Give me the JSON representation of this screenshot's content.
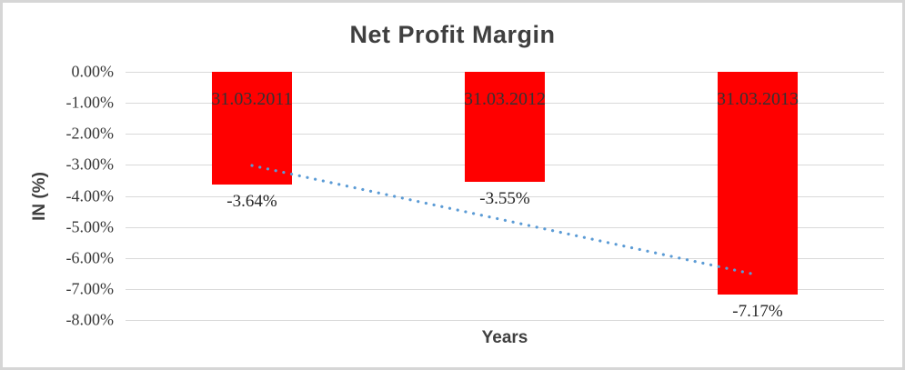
{
  "chart_data": {
    "type": "bar",
    "title": "Net Profit Margin",
    "xlabel": "Years",
    "ylabel": "IN (%)",
    "categories": [
      "31.03.2011",
      "31.03.2012",
      "31.03.2013"
    ],
    "values": [
      -3.64,
      -3.55,
      -7.17
    ],
    "data_labels": [
      "-3.64%",
      "-3.55%",
      "-7.17%"
    ],
    "y_ticks": [
      "0.00%",
      "-1.00%",
      "-2.00%",
      "-3.00%",
      "-4.00%",
      "-5.00%",
      "-6.00%",
      "-7.00%",
      "-8.00%"
    ],
    "ylim": [
      -8,
      0
    ],
    "grid": true,
    "legend": "none",
    "bar_color": "#FF0000",
    "gridline_color": "#D9D9D9",
    "title_color": "#3F3F3F",
    "trendline": {
      "style": "dotted",
      "color": "#5B9BD5",
      "start_value": -3.02,
      "end_value": -6.55
    }
  }
}
